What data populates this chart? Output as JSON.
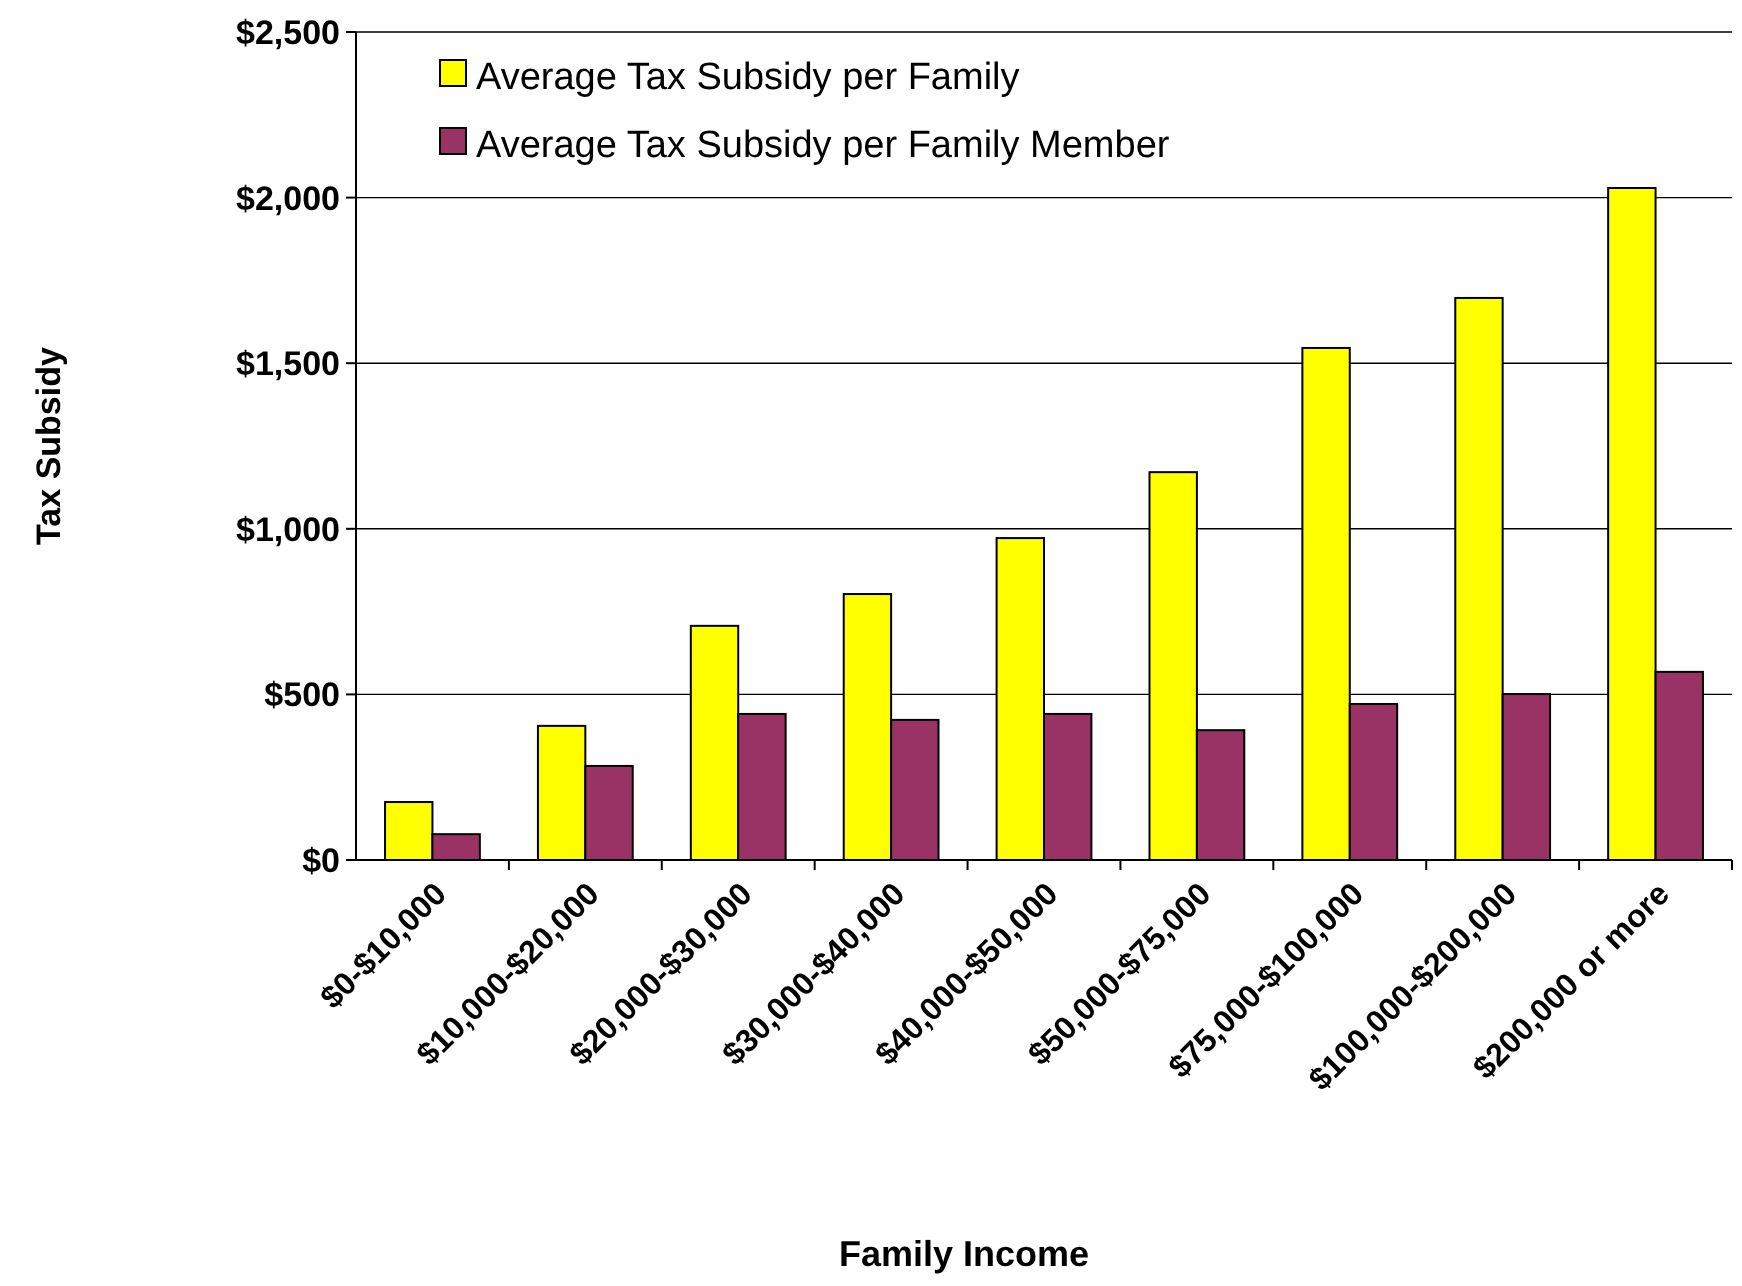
{
  "chart_data": {
    "type": "bar",
    "xlabel": "Family Income",
    "ylabel": "Tax Subsidy",
    "categories": [
      "$0-$10,000",
      "$10,000-$20,000",
      "$20,000-$30,000",
      "$30,000-$40,000",
      "$40,000-$50,000",
      "$50,000-$75,000",
      "$75,000-$100,000",
      "$100,000-$200,000",
      "$200,000 or more"
    ],
    "series": [
      {
        "name": "Average Tax Subsidy per Family",
        "color": "#ffff00",
        "values": [
          175,
          405,
          707,
          803,
          972,
          1171,
          1546,
          1697,
          2029
        ]
      },
      {
        "name": "Average Tax Subsidy per Family Member",
        "color": "#993366",
        "values": [
          78,
          284,
          441,
          423,
          441,
          392,
          471,
          501,
          568
        ]
      }
    ],
    "ylim": [
      0,
      2500
    ],
    "yticks": [
      {
        "value": 0,
        "label": "$0"
      },
      {
        "value": 500,
        "label": "$500"
      },
      {
        "value": 1000,
        "label": "$1,000"
      },
      {
        "value": 1500,
        "label": "$1,500"
      },
      {
        "value": 2000,
        "label": "$2,000"
      },
      {
        "value": 2500,
        "label": "$2,500"
      }
    ],
    "grid": "y",
    "legend": "top left"
  }
}
